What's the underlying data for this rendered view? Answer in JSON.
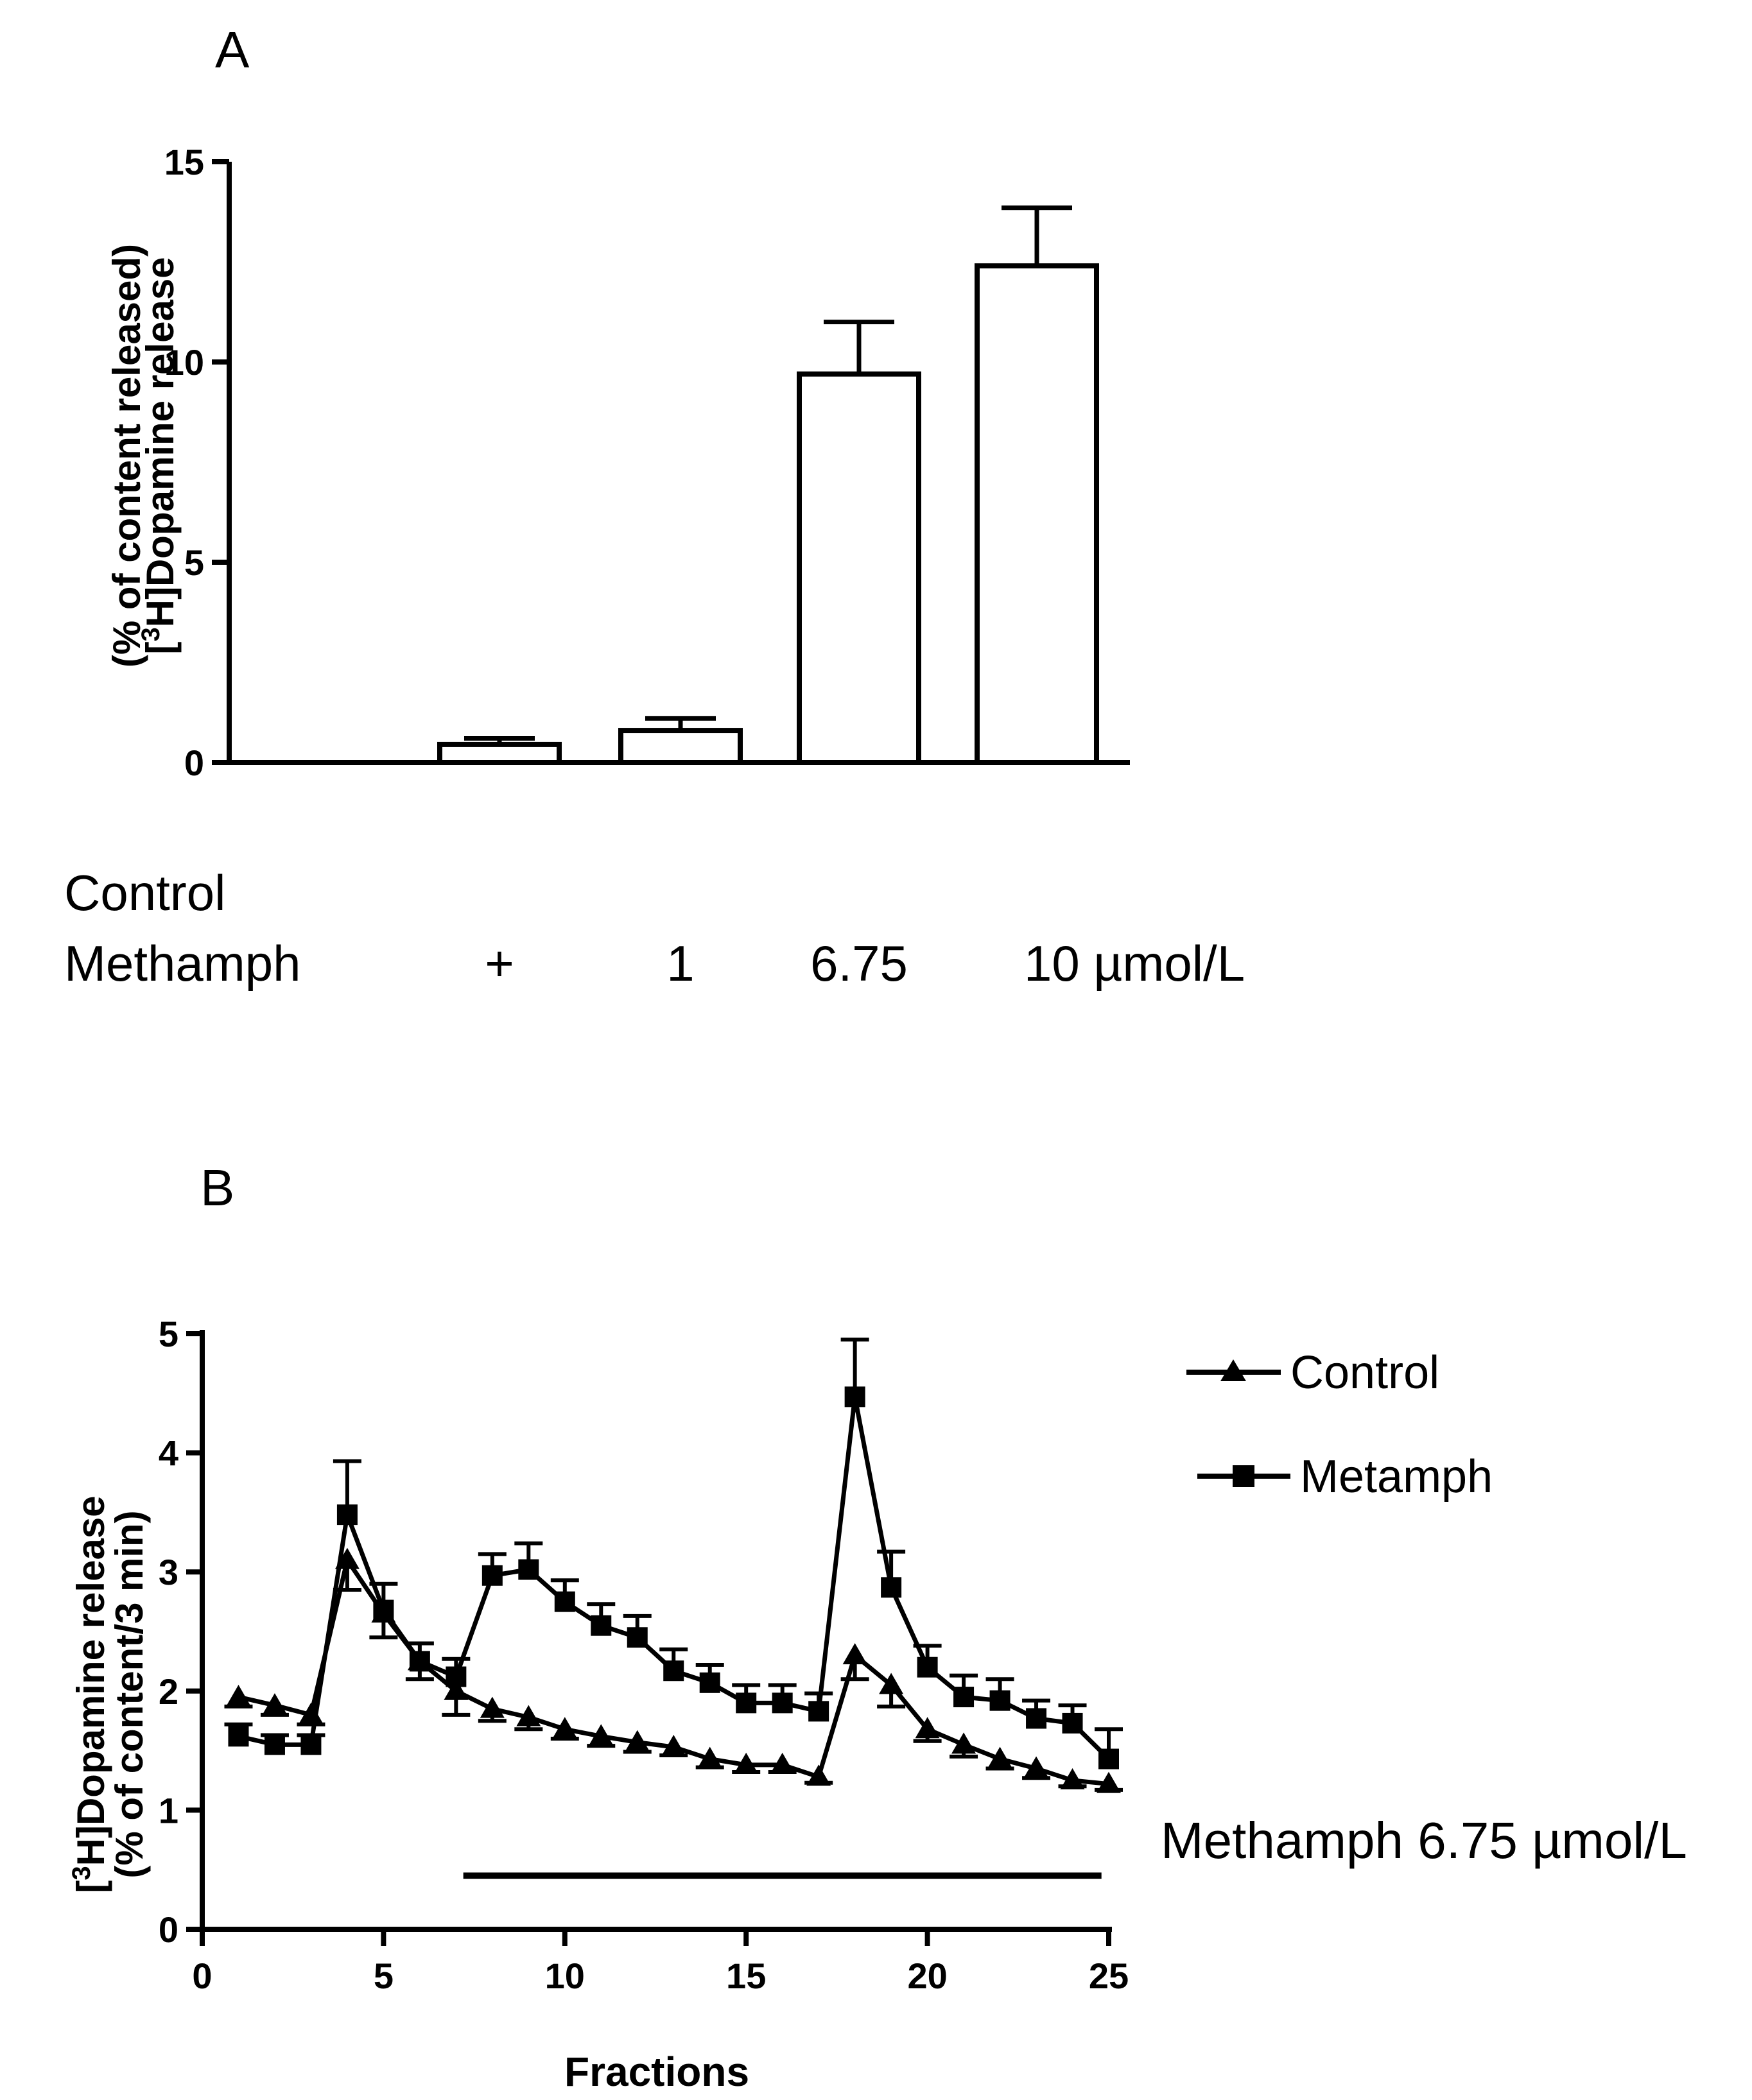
{
  "chart_data": [
    {
      "panel": "A",
      "type": "bar",
      "categories": [
        "",
        "+",
        "1",
        "6.75",
        "10 µmol/L"
      ],
      "values": [
        0,
        0.45,
        0.8,
        9.7,
        12.4
      ],
      "error": [
        0,
        0.15,
        0.3,
        1.3,
        1.45
      ],
      "ylim": [
        0,
        15
      ],
      "yticks": [
        "0",
        "5",
        "10",
        "15"
      ],
      "ylabel": [
        "[",
        "3",
        "H]Dopamine release",
        "(% of content released)"
      ],
      "row_labels": [
        "Control",
        "Methamph"
      ],
      "grid": false
    },
    {
      "panel": "B",
      "type": "line",
      "x": [
        1,
        2,
        3,
        4,
        5,
        6,
        7,
        8,
        9,
        10,
        11,
        12,
        13,
        14,
        15,
        16,
        17,
        18,
        19,
        20,
        21,
        22,
        23,
        24,
        25
      ],
      "series": [
        {
          "name": "Control",
          "marker": "triangle",
          "values": [
            1.95,
            1.88,
            1.8,
            3.1,
            2.65,
            2.25,
            2.0,
            1.85,
            1.78,
            1.68,
            1.62,
            1.57,
            1.53,
            1.43,
            1.38,
            1.38,
            1.28,
            2.3,
            2.05,
            1.68,
            1.55,
            1.43,
            1.35,
            1.25,
            1.22
          ],
          "error": [
            0.08,
            0.08,
            0.08,
            0.25,
            0.2,
            0.15,
            0.2,
            0.1,
            0.1,
            0.08,
            0.08,
            0.08,
            0.07,
            0.07,
            0.06,
            0.06,
            0.05,
            0.2,
            0.18,
            0.1,
            0.1,
            0.08,
            0.08,
            0.05,
            0.05
          ]
        },
        {
          "name": "Metamph",
          "marker": "square",
          "values": [
            1.62,
            1.55,
            1.55,
            3.48,
            2.68,
            2.25,
            2.12,
            2.97,
            3.02,
            2.75,
            2.55,
            2.45,
            2.17,
            2.07,
            1.9,
            1.9,
            1.83,
            4.47,
            2.87,
            2.2,
            1.95,
            1.92,
            1.77,
            1.73,
            1.43
          ],
          "error": [
            0.1,
            0.08,
            0.08,
            0.45,
            0.22,
            0.15,
            0.15,
            0.18,
            0.22,
            0.18,
            0.18,
            0.18,
            0.18,
            0.15,
            0.15,
            0.15,
            0.15,
            0.48,
            0.3,
            0.18,
            0.18,
            0.18,
            0.15,
            0.15,
            0.25
          ]
        }
      ],
      "xlim": [
        0,
        25
      ],
      "ylim": [
        0,
        5
      ],
      "xticks": [
        "0",
        "5",
        "10",
        "15",
        "20",
        "25"
      ],
      "yticks": [
        "0",
        "1",
        "2",
        "3",
        "4",
        "5"
      ],
      "xlabel": "Fractions",
      "ylabel": [
        "[",
        "3",
        "H]Dopamine release",
        "(% of content/3 min)"
      ],
      "treatment_bar": {
        "x_start": 7.2,
        "x_end": 24.8,
        "y": 0.45,
        "label": "Methamph 6.75 µmol/L"
      },
      "legend_position": "top-right",
      "grid": false
    }
  ]
}
